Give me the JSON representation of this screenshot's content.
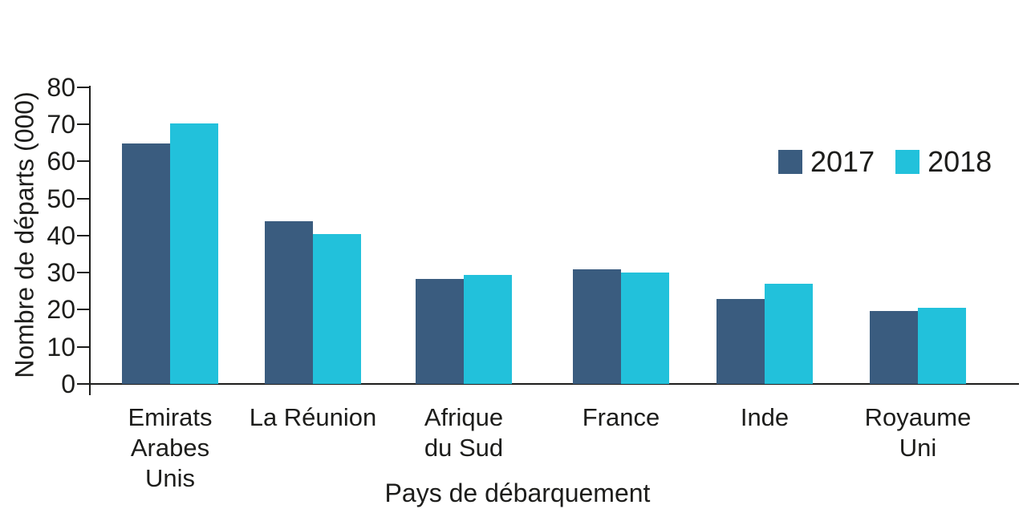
{
  "chart_data": {
    "type": "bar",
    "title": "",
    "xlabel": "Pays de débarquement",
    "ylabel": "Nombre de départs (000)",
    "categories": [
      "Emirats Arabes Unis",
      "La Réunion",
      "Afrique du Sud",
      "France",
      "Inde",
      "Royaume Uni"
    ],
    "category_lines": [
      [
        "Emirats",
        "Arabes",
        "Unis"
      ],
      [
        "La Réunion"
      ],
      [
        "Afrique",
        "du Sud"
      ],
      [
        "France"
      ],
      [
        "Inde"
      ],
      [
        "Royaume",
        "Uni"
      ]
    ],
    "series": [
      {
        "name": "2017",
        "color": "#3A5C7F",
        "values": [
          64.7,
          43.9,
          28.2,
          30.8,
          22.9,
          19.7
        ]
      },
      {
        "name": "2018",
        "color": "#22C1DB",
        "values": [
          70.2,
          40.4,
          29.4,
          30.1,
          27.0,
          20.6
        ]
      }
    ],
    "ylim": [
      0,
      80
    ],
    "yticks": [
      0,
      10,
      20,
      30,
      40,
      50,
      60,
      70,
      80
    ],
    "grid": false,
    "legend_position": "upper-right",
    "axis_color": "#1d1d1b",
    "text_color": "#1d1d1b"
  }
}
